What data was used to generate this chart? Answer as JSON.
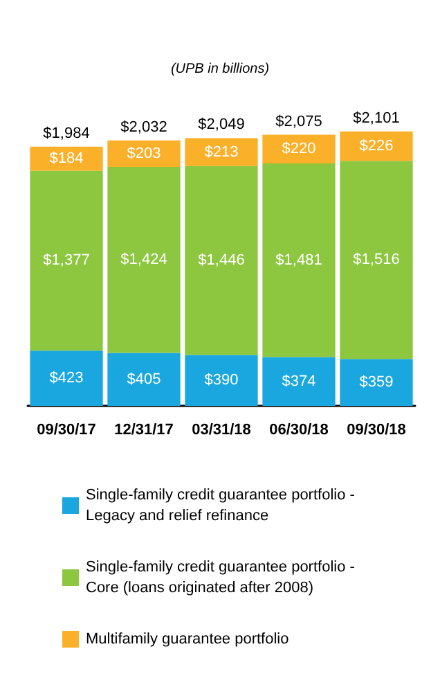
{
  "chart_data": {
    "type": "bar",
    "title": "(UPB in billions)",
    "stacked": true,
    "categories": [
      "09/30/17",
      "12/31/17",
      "03/31/18",
      "06/30/18",
      "09/30/18"
    ],
    "series": [
      {
        "name": "Single-family credit guarantee portfolio - Legacy and relief refinance",
        "color": "#1aa7e0",
        "values": [
          423,
          405,
          390,
          374,
          359
        ],
        "value_labels": [
          "$423",
          "$405",
          "$390",
          "$374",
          "$359"
        ]
      },
      {
        "name": "Single-family credit guarantee portfolio - Core (loans originated after 2008)",
        "color": "#8dc63f",
        "values": [
          1377,
          1424,
          1446,
          1481,
          1516
        ],
        "value_labels": [
          "$1,377",
          "$1,424",
          "$1,446",
          "$1,481",
          "$1,516"
        ]
      },
      {
        "name": "Multifamily guarantee portfolio",
        "color": "#fbb02a",
        "values": [
          184,
          203,
          213,
          220,
          226
        ],
        "value_labels": [
          "$184",
          "$203",
          "$213",
          "$220",
          "$226"
        ]
      }
    ],
    "totals": [
      "$1,984",
      "$2,032",
      "$2,049",
      "$2,075",
      "$2,101"
    ],
    "legend": "bottom"
  }
}
